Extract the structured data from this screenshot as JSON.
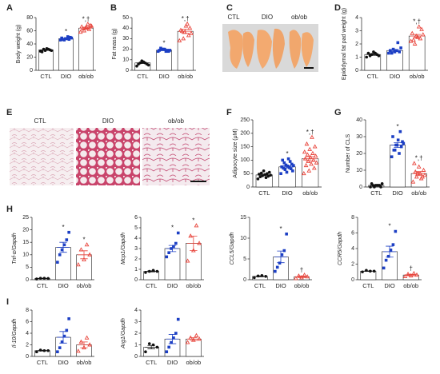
{
  "chart_data": [
    {
      "type": "bar",
      "panel": "A",
      "ylabel": "Body weight (g)",
      "categories": [
        "CTL",
        "DIO",
        "ob/ob"
      ],
      "colors": [
        "#111111",
        "#1c3fc4",
        "#e8453c"
      ],
      "markers": [
        "circle",
        "square",
        "triangle"
      ],
      "values": [
        31,
        48,
        64
      ],
      "errors": [
        0.8,
        0.6,
        1.5
      ],
      "points": [
        [
          29,
          30,
          31,
          32,
          33,
          30,
          32,
          28
        ],
        [
          46,
          47,
          48,
          49,
          50,
          48,
          47,
          49,
          51,
          46
        ],
        [
          58,
          62,
          64,
          66,
          68,
          65,
          63,
          67,
          70,
          60
        ]
      ],
      "annotations": [
        null,
        "*",
        "*,†"
      ],
      "ylim": [
        0,
        80
      ],
      "yticks": [
        0,
        20,
        40,
        60,
        80
      ]
    },
    {
      "type": "bar",
      "panel": "B",
      "ylabel": "Fat mass (g)",
      "categories": [
        "CTL",
        "DIO",
        "ob/ob"
      ],
      "colors": [
        "#111111",
        "#1c3fc4",
        "#e8453c"
      ],
      "markers": [
        "circle",
        "square",
        "triangle"
      ],
      "values": [
        7,
        19,
        37
      ],
      "errors": [
        0.5,
        0.4,
        2
      ],
      "points": [
        [
          4,
          5,
          6,
          7,
          8,
          9,
          7,
          6
        ],
        [
          18,
          19,
          20,
          19,
          18,
          20,
          21,
          19,
          18,
          20
        ],
        [
          28,
          33,
          36,
          38,
          40,
          42,
          37,
          35,
          44,
          30
        ]
      ],
      "annotations": [
        null,
        "*",
        "*,†"
      ],
      "ylim": [
        0,
        50
      ],
      "yticks": [
        0,
        10,
        20,
        30,
        40,
        50
      ]
    },
    {
      "type": "bar",
      "panel": "D",
      "ylabel": "Epididymal fat pad weight (g)",
      "categories": [
        "CTL",
        "DIO",
        "ob/ob"
      ],
      "colors": [
        "#111111",
        "#1c3fc4",
        "#e8453c"
      ],
      "markers": [
        "circle",
        "square",
        "triangle"
      ],
      "values": [
        1.2,
        1.5,
        2.6
      ],
      "errors": [
        0.06,
        0.08,
        0.12
      ],
      "points": [
        [
          1.0,
          1.1,
          1.2,
          1.3,
          1.4,
          1.2,
          1.1,
          1.3
        ],
        [
          1.3,
          1.4,
          1.5,
          1.6,
          1.5,
          1.7,
          2.1,
          1.4,
          1.3
        ],
        [
          2.2,
          2.4,
          2.6,
          2.8,
          3.1,
          2.5,
          2.3,
          2.7,
          3.3,
          2.0
        ]
      ],
      "annotations": [
        null,
        null,
        "*,†"
      ],
      "ylim": [
        0,
        4
      ],
      "yticks": [
        0,
        1,
        2,
        3,
        4
      ]
    },
    {
      "type": "bar",
      "panel": "F",
      "ylabel": "Adipocyte size (μM)",
      "categories": [
        "CTL",
        "DIO",
        "ob/ob"
      ],
      "colors": [
        "#111111",
        "#1c3fc4",
        "#e8453c"
      ],
      "markers": [
        "circle",
        "square",
        "triangle"
      ],
      "values": [
        45,
        75,
        105
      ],
      "errors": [
        3,
        4,
        8
      ],
      "points": [
        [
          30,
          35,
          38,
          40,
          42,
          44,
          46,
          48,
          50,
          52,
          55,
          60
        ],
        [
          50,
          55,
          60,
          65,
          68,
          70,
          72,
          75,
          78,
          80,
          82,
          85,
          90,
          95,
          100,
          105
        ],
        [
          50,
          60,
          70,
          80,
          85,
          90,
          95,
          100,
          105,
          110,
          115,
          120,
          125,
          130,
          140,
          150,
          160,
          185
        ]
      ],
      "annotations": [
        null,
        "*",
        "*,†"
      ],
      "ylim": [
        0,
        250
      ],
      "yticks": [
        0,
        50,
        100,
        150,
        200,
        250
      ]
    },
    {
      "type": "bar",
      "panel": "G",
      "ylabel": "Number of CLS",
      "categories": [
        "CTL",
        "DIO",
        "ob/ob"
      ],
      "colors": [
        "#111111",
        "#1c3fc4",
        "#e8453c"
      ],
      "markers": [
        "circle",
        "square",
        "triangle"
      ],
      "values": [
        1,
        25,
        8
      ],
      "errors": [
        0.2,
        1.5,
        1.2
      ],
      "points": [
        [
          0,
          1,
          1,
          2,
          0,
          1,
          1,
          2,
          1,
          0
        ],
        [
          18,
          20,
          22,
          24,
          25,
          26,
          28,
          30,
          33,
          22,
          27,
          25
        ],
        [
          3,
          5,
          6,
          7,
          8,
          9,
          10,
          12,
          14,
          6,
          8
        ]
      ],
      "annotations": [
        null,
        "*",
        "*,†"
      ],
      "ylim": [
        0,
        40
      ],
      "yticks": [
        0,
        10,
        20,
        30,
        40
      ]
    },
    {
      "type": "bar",
      "panel": "H",
      "ylabel": "Tnf-α/Gapdh",
      "categories": [
        "CTL",
        "DIO",
        "ob/ob"
      ],
      "colors": [
        "#111111",
        "#1c3fc4",
        "#e8453c"
      ],
      "markers": [
        "circle",
        "square",
        "triangle"
      ],
      "values": [
        0.5,
        13,
        10
      ],
      "errors": [
        0.1,
        2,
        1.6
      ],
      "points": [
        [
          0.3,
          0.5,
          0.6,
          0.6
        ],
        [
          7,
          10,
          12,
          14,
          16,
          19
        ],
        [
          6,
          8,
          10,
          12,
          14
        ]
      ],
      "annotations": [
        null,
        "*",
        "*"
      ],
      "ylim": [
        0,
        25
      ],
      "yticks": [
        0,
        5,
        10,
        15,
        20,
        25
      ]
    },
    {
      "type": "bar",
      "ylabel": "Mcp1/Gapdh",
      "categories": [
        "CTL",
        "DIO",
        "ob/ob"
      ],
      "colors": [
        "#111111",
        "#1c3fc4",
        "#e8453c"
      ],
      "markers": [
        "circle",
        "square",
        "triangle"
      ],
      "values": [
        0.8,
        3,
        3.5
      ],
      "errors": [
        0.05,
        0.3,
        0.7
      ],
      "points": [
        [
          0.7,
          0.8,
          0.9,
          0.8
        ],
        [
          2.2,
          2.6,
          3,
          3.2,
          3.5,
          4.5
        ],
        [
          1.8,
          2.8,
          3.5,
          4.2,
          5.2
        ]
      ],
      "annotations": [
        null,
        "*",
        "*"
      ],
      "ylim": [
        0,
        6
      ],
      "yticks": [
        0,
        1,
        2,
        3,
        4,
        5,
        6
      ]
    },
    {
      "type": "bar",
      "ylabel": "CCL5/Gapdh",
      "categories": [
        "CTL",
        "DIO",
        "ob/ob"
      ],
      "colors": [
        "#111111",
        "#1c3fc4",
        "#e8453c"
      ],
      "markers": [
        "circle",
        "square",
        "triangle"
      ],
      "values": [
        0.8,
        5.5,
        0.7
      ],
      "errors": [
        0.1,
        1.4,
        0.2
      ],
      "points": [
        [
          0.5,
          0.8,
          1,
          0.9
        ],
        [
          2,
          3,
          4,
          6,
          7,
          11
        ],
        [
          0.3,
          0.5,
          0.7,
          0.9,
          1.1
        ]
      ],
      "annotations": [
        null,
        "*",
        "†"
      ],
      "ylim": [
        0,
        15
      ],
      "yticks": [
        0,
        5,
        10,
        15
      ]
    },
    {
      "type": "bar",
      "ylabel": "CCR5/Gapdh",
      "categories": [
        "CTL",
        "DIO",
        "ob/ob"
      ],
      "colors": [
        "#111111",
        "#1c3fc4",
        "#e8453c"
      ],
      "markers": [
        "circle",
        "square",
        "triangle"
      ],
      "values": [
        1.1,
        3.6,
        0.6
      ],
      "errors": [
        0.03,
        0.7,
        0.1
      ],
      "points": [
        [
          1,
          1.1,
          1.1,
          1.2
        ],
        [
          1.5,
          2.5,
          3,
          3.8,
          4.5,
          6.2
        ],
        [
          0.4,
          0.5,
          0.6,
          0.7,
          0.8
        ]
      ],
      "annotations": [
        null,
        "*",
        "†"
      ],
      "ylim": [
        0,
        8
      ],
      "yticks": [
        0,
        2,
        4,
        6,
        8
      ]
    },
    {
      "type": "bar",
      "panel": "I",
      "ylabel": "Il-10/Gapdh",
      "categories": [
        "CTL",
        "DIO",
        "ob/ob"
      ],
      "colors": [
        "#111111",
        "#1c3fc4",
        "#e8453c"
      ],
      "markers": [
        "circle",
        "square",
        "triangle"
      ],
      "values": [
        1,
        3.3,
        2
      ],
      "errors": [
        0.07,
        1,
        0.5
      ],
      "points": [
        [
          0.8,
          1,
          1,
          1.1
        ],
        [
          0.8,
          1.5,
          2.5,
          3.5,
          4.5,
          6.5
        ],
        [
          0.9,
          1.5,
          2,
          2.5,
          3.2
        ]
      ],
      "ylim": [
        0,
        8
      ],
      "yticks": [
        0,
        2,
        4,
        6,
        8
      ]
    },
    {
      "type": "bar",
      "ylabel": "Arg1/Gapdh",
      "categories": [
        "CTL",
        "DIO",
        "ob/ob"
      ],
      "colors": [
        "#111111",
        "#1c3fc4",
        "#e8453c"
      ],
      "markers": [
        "circle",
        "square",
        "triangle"
      ],
      "values": [
        0.8,
        1.5,
        1.5
      ],
      "errors": [
        0.15,
        0.4,
        0.12
      ],
      "points": [
        [
          0.4,
          0.8,
          1,
          1.1
        ],
        [
          0.4,
          0.8,
          1.2,
          1.6,
          2,
          3.2
        ],
        [
          1.2,
          1.4,
          1.5,
          1.6,
          1.8
        ]
      ],
      "ylim": [
        0,
        4
      ],
      "yticks": [
        0,
        1,
        2,
        3,
        4
      ]
    }
  ],
  "photos": [
    {
      "panel": "C",
      "labels": [
        "CTL",
        "DIO",
        "ob/ob"
      ]
    },
    {
      "panel": "E",
      "labels": [
        "CTL",
        "DIO",
        "ob/ob"
      ]
    }
  ]
}
